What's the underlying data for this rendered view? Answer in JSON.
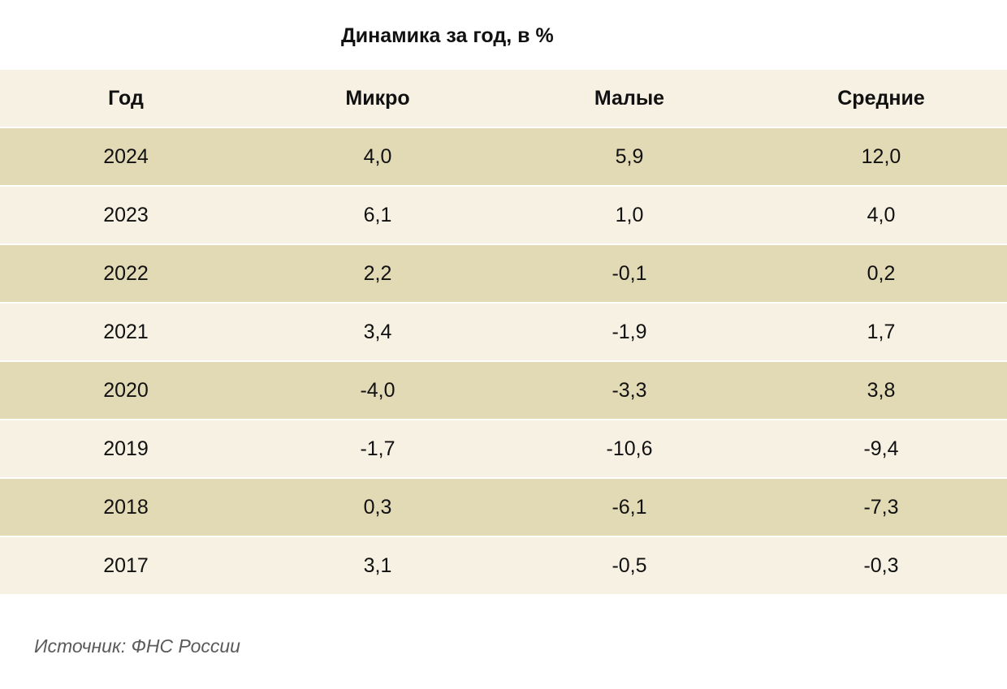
{
  "chart_data": {
    "type": "table",
    "title": "Динамика за год, в %",
    "columns": [
      "Год",
      "Микро",
      "Малые",
      "Средние"
    ],
    "rows": [
      [
        "2024",
        "4,0",
        "5,9",
        "12,0"
      ],
      [
        "2023",
        "6,1",
        "1,0",
        "4,0"
      ],
      [
        "2022",
        "2,2",
        "-0,1",
        "0,2"
      ],
      [
        "2021",
        "3,4",
        "-1,9",
        "1,7"
      ],
      [
        "2020",
        "-4,0",
        "-3,3",
        "3,8"
      ],
      [
        "2019",
        "-1,7",
        "-10,6",
        "-9,4"
      ],
      [
        "2018",
        "0,3",
        "-6,1",
        "-7,3"
      ],
      [
        "2017",
        "3,1",
        "-0,5",
        "-0,3"
      ]
    ],
    "source": "Источник: ФНС России"
  },
  "colors": {
    "header_bg": "#f6f1e3",
    "row_odd_bg": "#e2d9b5",
    "row_even_bg": "#f6f1e3",
    "text": "#111111",
    "source_text": "#5a5a5a"
  }
}
